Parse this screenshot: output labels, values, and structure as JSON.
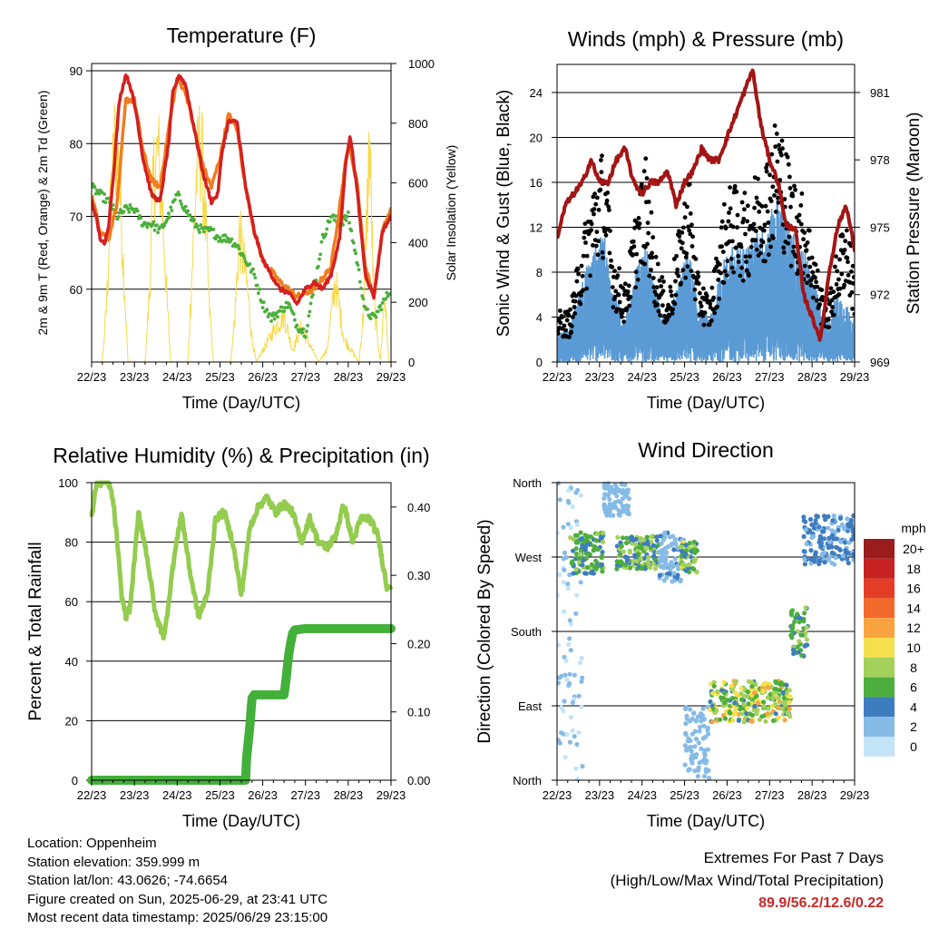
{
  "colors": {
    "temp2m": "#d42020",
    "temp9m": "#f07d1e",
    "dewpoint": "#4cae3c",
    "solar": "#f8d94a",
    "gust": "#000000",
    "wind": "#5b9bd5",
    "pressure": "#a31515",
    "rh": "#93cc4e",
    "precip": "#43b03a",
    "extremes": "#c62828"
  },
  "footer": {
    "location": "Location: Oppenheim",
    "elevation": "Station elevation: 359.999 m",
    "latlon": "Station lat/lon: 43.0626; -74.6654",
    "created": "Figure created on Sun, 2025-06-29, at 23:41 UTC",
    "latest": "Most recent data timestamp: 2025/06/29 23:15:00"
  },
  "extremes": {
    "heading": "Extremes For Past 7 Days",
    "subheading": "(High/Low/Max Wind/Total Precipitation)",
    "values": "89.9/56.2/12.6/0.22"
  },
  "chart_data": [
    {
      "id": "temperature",
      "type": "line",
      "title": "Temperature (F)",
      "xlabel": "Time (Day/UTC)",
      "ylabel": "2m & 9m T (Red, Orange) & 2m Td (Green)",
      "y2label": "Solar Insolation (Yellow)",
      "categories": [
        "22/23",
        "23/23",
        "24/23",
        "25/23",
        "26/23",
        "27/23",
        "28/23",
        "29/23"
      ],
      "yticks": [
        60,
        70,
        80,
        90
      ],
      "ylim": [
        50,
        91
      ],
      "y2ticks": [
        0,
        200,
        400,
        600,
        800,
        1000
      ],
      "y2lim": [
        0,
        1000
      ],
      "series": [
        {
          "key": "t2m",
          "x": [
            0,
            0.1,
            0.2,
            0.3,
            0.4,
            0.5,
            0.65,
            0.8,
            0.9,
            1.05,
            1.2,
            1.4,
            1.6,
            1.8,
            1.9,
            2.05,
            2.2,
            2.4,
            2.6,
            2.8,
            2.95,
            3.05,
            3.2,
            3.4,
            3.6,
            3.8,
            4.0,
            4.2,
            4.4,
            4.6,
            4.8,
            5.0,
            5.2,
            5.4,
            5.6,
            5.8,
            5.95,
            6.05,
            6.2,
            6.4,
            6.6,
            6.8,
            7.0
          ],
          "values": [
            72,
            70,
            67,
            66,
            69,
            75,
            86,
            89.5,
            88,
            84,
            78,
            73,
            72,
            80,
            87,
            89.5,
            88,
            82,
            76,
            72,
            73,
            79,
            83,
            83,
            74,
            68,
            64,
            62,
            60,
            59.5,
            58,
            60,
            61,
            60,
            62,
            67,
            78,
            81,
            74,
            62,
            59,
            68,
            70
          ]
        },
        {
          "key": "t9m",
          "x": [
            0,
            0.2,
            0.4,
            0.6,
            0.8,
            1.0,
            1.2,
            1.4,
            1.6,
            1.8,
            2.0,
            2.2,
            2.4,
            2.6,
            2.8,
            3.0,
            3.2,
            3.4,
            3.6,
            3.8,
            4.0,
            4.4,
            4.8,
            5.2,
            5.6,
            6.0,
            6.2,
            6.4,
            6.6,
            6.8,
            7.0
          ],
          "values": [
            73,
            68,
            67,
            72,
            86,
            86,
            79,
            75,
            74,
            82,
            89,
            87,
            82,
            77,
            74,
            78,
            84,
            82,
            74,
            68,
            64,
            61,
            59,
            60,
            63,
            80,
            75,
            63,
            59,
            68,
            71
          ]
        },
        {
          "key": "td",
          "x": [
            0,
            0.2,
            0.4,
            0.6,
            0.8,
            1.0,
            1.2,
            1.4,
            1.6,
            1.8,
            2.0,
            2.2,
            2.4,
            2.6,
            2.8,
            3.0,
            3.2,
            3.4,
            3.6,
            3.8,
            4.0,
            4.2,
            4.4,
            4.6,
            4.8,
            5.0,
            5.2,
            5.4,
            5.6,
            5.8,
            6.0,
            6.2,
            6.4,
            6.6,
            6.8,
            7.0
          ],
          "values": [
            74,
            73,
            72,
            70,
            71,
            71,
            69,
            69,
            68,
            70,
            73,
            71,
            69,
            68,
            68,
            67,
            67,
            66,
            64,
            62,
            58,
            56,
            57,
            58,
            55,
            54,
            60,
            67,
            70,
            69,
            70,
            64,
            57,
            56,
            58,
            60
          ]
        },
        {
          "key": "solar",
          "x": [
            0.05,
            0.25,
            0.35,
            0.45,
            0.55,
            0.65,
            0.75,
            0.85,
            1.25,
            1.35,
            1.45,
            1.55,
            1.65,
            1.75,
            1.85,
            2.25,
            2.35,
            2.45,
            2.55,
            2.65,
            2.75,
            2.85,
            3.25,
            3.35,
            3.45,
            3.55,
            3.65,
            3.75,
            3.85,
            4.3,
            4.5,
            4.7,
            4.9,
            5.3,
            5.5,
            5.7,
            5.9,
            6.25,
            6.35,
            6.5,
            6.6,
            6.75,
            6.85,
            6.95
          ],
          "values": [
            0,
            0,
            250,
            700,
            950,
            800,
            400,
            0,
            0,
            300,
            800,
            900,
            700,
            300,
            0,
            0,
            400,
            800,
            950,
            650,
            250,
            0,
            0,
            200,
            550,
            450,
            300,
            100,
            0,
            150,
            200,
            50,
            150,
            0,
            50,
            350,
            100,
            0,
            200,
            950,
            250,
            0,
            300,
            0
          ]
        }
      ]
    },
    {
      "id": "winds",
      "type": "scatter",
      "title": "Winds (mph) & Pressure (mb)",
      "xlabel": "Time (Day/UTC)",
      "ylabel": "Sonic Wind & Gust (Blue, Black)",
      "y2label": "Station Pressure (Maroon)",
      "categories": [
        "22/23",
        "23/23",
        "24/23",
        "25/23",
        "26/23",
        "27/23",
        "28/23",
        "29/23"
      ],
      "yticks": [
        0,
        4,
        8,
        12,
        16,
        20,
        24
      ],
      "ylim": [
        0,
        26.5
      ],
      "y2ticks": [
        969,
        972,
        975,
        978,
        981
      ],
      "y2lim": [
        969,
        982.25
      ],
      "series": [
        {
          "key": "wind",
          "x": [
            0,
            0.3,
            0.6,
            0.9,
            1.1,
            1.3,
            1.6,
            1.9,
            2.1,
            2.3,
            2.6,
            2.9,
            3.1,
            3.3,
            3.6,
            3.9,
            4.1,
            4.4,
            4.7,
            5.0,
            5.2,
            5.5,
            5.8,
            6.0,
            6.2,
            6.4,
            6.6,
            6.8,
            7.0
          ],
          "values": [
            2,
            2.5,
            6,
            8,
            9,
            5,
            3,
            7,
            8,
            5,
            3,
            6,
            8,
            4,
            3,
            7,
            8,
            8,
            9,
            10,
            12,
            9,
            8,
            6,
            4,
            3,
            5,
            4,
            3
          ]
        },
        {
          "key": "gust",
          "x": [
            0,
            0.3,
            0.6,
            0.9,
            1.1,
            1.3,
            1.6,
            1.9,
            2.1,
            2.3,
            2.6,
            2.9,
            3.1,
            3.3,
            3.6,
            3.9,
            4.1,
            4.4,
            4.7,
            5.0,
            5.2,
            5.5,
            5.8,
            6.0,
            6.2,
            6.4,
            6.6,
            6.8,
            7.0
          ],
          "values": [
            4,
            4,
            10,
            15,
            17,
            9,
            6,
            13,
            16,
            9,
            5,
            11,
            15,
            7,
            5,
            12,
            14,
            13,
            15,
            17,
            20,
            15,
            13,
            10,
            6,
            5,
            9,
            12,
            7
          ]
        },
        {
          "key": "pressure",
          "x": [
            0,
            0.2,
            0.4,
            0.6,
            0.8,
            1.0,
            1.2,
            1.4,
            1.6,
            1.8,
            2.0,
            2.2,
            2.4,
            2.6,
            2.8,
            3.0,
            3.2,
            3.4,
            3.6,
            3.8,
            4.0,
            4.2,
            4.4,
            4.6,
            4.8,
            5.0,
            5.2,
            5.4,
            5.6,
            5.8,
            6.0,
            6.2,
            6.4,
            6.6,
            6.8,
            7.0
          ],
          "values": [
            974.5,
            976,
            976.5,
            977,
            978,
            977,
            977,
            978,
            978.5,
            977,
            976.5,
            977,
            977,
            977.5,
            976,
            977,
            977.5,
            978.5,
            978,
            978,
            979,
            980,
            981,
            982,
            979.5,
            978,
            977,
            975,
            975,
            972,
            971,
            970,
            973,
            975,
            976,
            974
          ]
        }
      ]
    },
    {
      "id": "humidity",
      "type": "line",
      "title": "Relative Humidity (%) & Precipitation (in)",
      "xlabel": "Time (Day/UTC)",
      "ylabel": "Percent & Total Rainfall",
      "categories": [
        "22/23",
        "23/23",
        "24/23",
        "25/23",
        "26/23",
        "27/23",
        "28/23",
        "29/23"
      ],
      "yticks": [
        0,
        20,
        40,
        60,
        80,
        100
      ],
      "ylim": [
        0,
        100
      ],
      "y2ticks": [
        "0.00",
        "0.10",
        "0.20",
        "0.30",
        "0.40"
      ],
      "y2lim": [
        0,
        0.4357
      ],
      "series": [
        {
          "key": "rh",
          "x": [
            0,
            0.1,
            0.2,
            0.3,
            0.4,
            0.5,
            0.6,
            0.7,
            0.8,
            0.9,
            1.1,
            1.3,
            1.5,
            1.7,
            1.9,
            2.1,
            2.3,
            2.5,
            2.7,
            2.9,
            3.1,
            3.3,
            3.5,
            3.7,
            3.9,
            4.1,
            4.3,
            4.5,
            4.7,
            4.9,
            5.1,
            5.3,
            5.5,
            5.7,
            5.9,
            6.1,
            6.3,
            6.5,
            6.7,
            6.9,
            7.0
          ],
          "values": [
            88,
            99,
            100,
            100,
            100,
            94,
            80,
            62,
            55,
            58,
            90,
            75,
            55,
            48,
            72,
            90,
            70,
            55,
            62,
            88,
            90,
            80,
            62,
            85,
            92,
            95,
            90,
            93,
            90,
            80,
            88,
            80,
            78,
            82,
            93,
            80,
            88,
            88,
            82,
            65,
            66
          ]
        },
        {
          "key": "precip",
          "x": [
            0,
            3.6,
            3.62,
            3.7,
            3.75,
            3.8,
            3.85,
            4.0,
            4.5,
            4.55,
            4.6,
            4.65,
            4.7,
            4.75,
            5.0,
            6.0,
            7.0
          ],
          "values": [
            0,
            0,
            0.03,
            0.08,
            0.12,
            0.125,
            0.125,
            0.125,
            0.125,
            0.15,
            0.18,
            0.2,
            0.215,
            0.22,
            0.222,
            0.222,
            0.222
          ]
        }
      ]
    },
    {
      "id": "direction",
      "type": "scatter",
      "title": "Wind Direction",
      "xlabel": "Time (Day/UTC)",
      "ylabel": "Direction (Colored By Speed)",
      "categories": [
        "22/23",
        "23/23",
        "24/23",
        "25/23",
        "26/23",
        "27/23",
        "28/23",
        "29/23"
      ],
      "ycats": [
        "North",
        "East",
        "South",
        "West",
        "North"
      ],
      "ylim": [
        0,
        360
      ],
      "legend": {
        "title": "mph",
        "labels": [
          "20+",
          "18",
          "16",
          "14",
          "12",
          "10",
          "8",
          "6",
          "4",
          "2",
          "0"
        ],
        "colors": [
          "#9b1c1c",
          "#c72222",
          "#e33d27",
          "#f26a2b",
          "#f9a340",
          "#f4e04d",
          "#a4d15b",
          "#4cae3c",
          "#3e7cc0",
          "#86bbe6",
          "#c3e3f7"
        ]
      },
      "clusters": [
        {
          "x": [
            0.0,
            0.6
          ],
          "dir": [
            0,
            360
          ],
          "speed": [
            0,
            3
          ]
        },
        {
          "x": [
            0.3,
            1.1
          ],
          "dir": [
            250,
            300
          ],
          "speed": [
            3,
            8
          ]
        },
        {
          "x": [
            1.1,
            1.7
          ],
          "dir": [
            320,
            360
          ],
          "speed": [
            1,
            3
          ]
        },
        {
          "x": [
            1.4,
            2.4
          ],
          "dir": [
            255,
            295
          ],
          "speed": [
            3,
            9
          ]
        },
        {
          "x": [
            2.4,
            3.0
          ],
          "dir": [
            240,
            300
          ],
          "speed": [
            1,
            4
          ]
        },
        {
          "x": [
            2.9,
            3.3
          ],
          "dir": [
            250,
            290
          ],
          "speed": [
            4,
            10
          ]
        },
        {
          "x": [
            3.0,
            3.6
          ],
          "dir": [
            0,
            90
          ],
          "speed": [
            1,
            3
          ]
        },
        {
          "x": [
            3.6,
            5.5
          ],
          "dir": [
            70,
            120
          ],
          "speed": [
            4,
            12
          ]
        },
        {
          "x": [
            5.5,
            5.9
          ],
          "dir": [
            150,
            210
          ],
          "speed": [
            3,
            8
          ]
        },
        {
          "x": [
            5.8,
            7.0
          ],
          "dir": [
            260,
            320
          ],
          "speed": [
            2,
            5
          ]
        }
      ]
    }
  ]
}
